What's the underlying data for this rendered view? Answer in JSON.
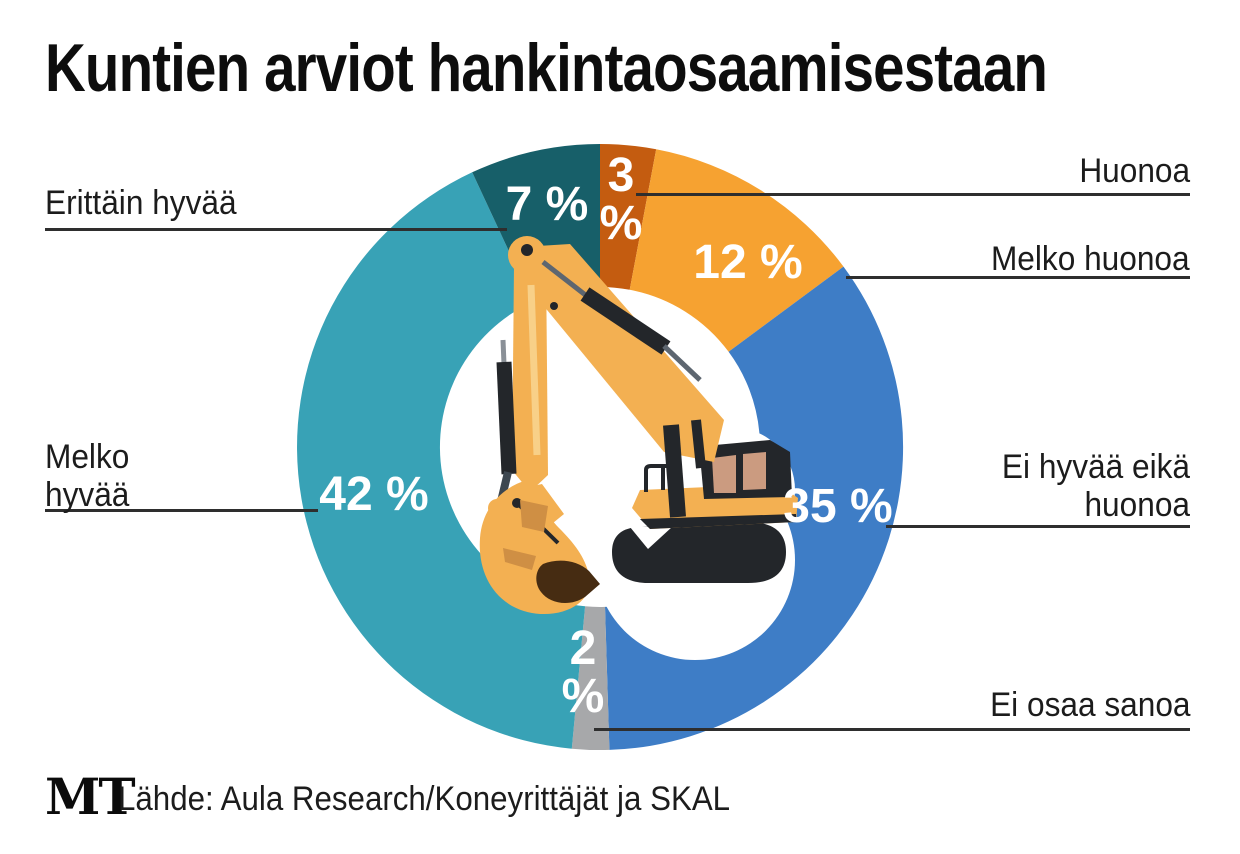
{
  "title": "Kuntien arviot hankintaosaamisestaan",
  "chart_data": {
    "type": "pie",
    "subtype": "donut",
    "title": "Kuntien arviot hankintaosaamisestaan",
    "unit": "%",
    "direction": "clockwise",
    "start_angle_deg": 0,
    "legend_position": "callout-labels-both-sides",
    "segments": [
      {
        "label": "Huonoa",
        "value": 3,
        "display": "3 %",
        "color": "#c45c10"
      },
      {
        "label": "Melko huonoa",
        "value": 12,
        "display": "12 %",
        "color": "#f6a231"
      },
      {
        "label": "Ei hyvää eikä huonoa",
        "value": 35,
        "display": "35 %",
        "color": "#3e7dc6"
      },
      {
        "label": "Ei osaa sanoa",
        "value": 2,
        "display": "2 %",
        "color": "#a7a8aa"
      },
      {
        "label": "Melko hyvää",
        "value": 42,
        "display": "42 %",
        "color": "#38a2b6"
      },
      {
        "label": "Erittäin hyvää",
        "value": 7,
        "display": "7 %",
        "color": "#175f69"
      }
    ]
  },
  "illustration": {
    "name": "excavator",
    "body_color": "#f3b052",
    "shade_color": "#cf8f44",
    "dark_color": "#23262a",
    "window_color": "#cb9b80",
    "dirt_color": "#462c12"
  },
  "footer": {
    "logo": "MT",
    "source": "Lähde: Aula Research/Koneyrittäjät ja SKAL"
  }
}
